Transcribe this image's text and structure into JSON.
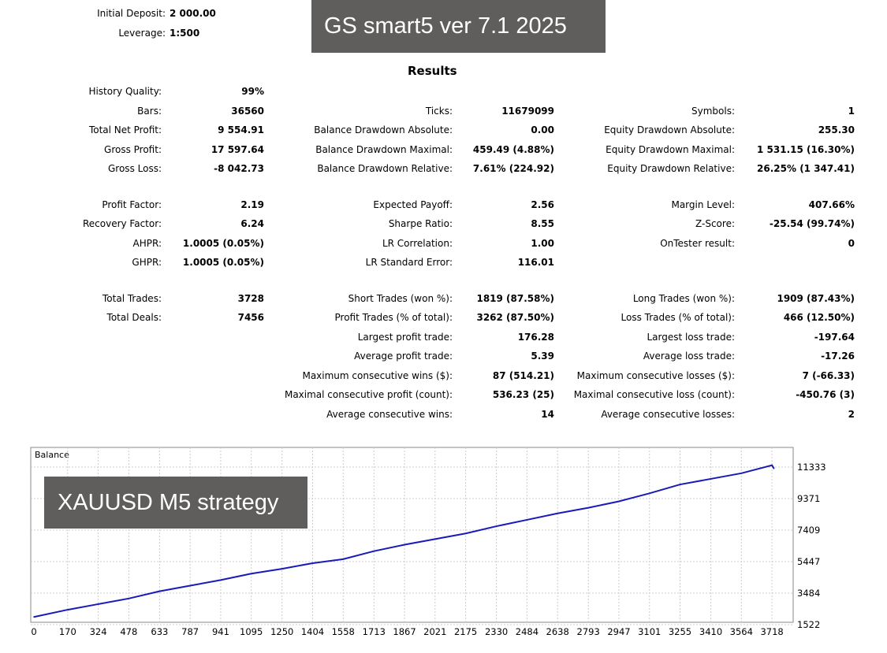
{
  "header": {
    "initial_deposit_label": "Initial Deposit:",
    "initial_deposit": "2 000.00",
    "leverage_label": "Leverage:",
    "leverage": "1:500",
    "banner": "GS smart5 ver 7.1 2025",
    "results_title": "Results"
  },
  "stats": [
    {
      "label": "History Quality:",
      "value": "99%",
      "col": 0,
      "row": 0
    },
    {
      "label": "Bars:",
      "value": "36560",
      "col": 0,
      "row": 1
    },
    {
      "label": "Ticks:",
      "value": "11679099",
      "col": 1,
      "row": 1
    },
    {
      "label": "Symbols:",
      "value": "1",
      "col": 2,
      "row": 1
    },
    {
      "label": "Total Net Profit:",
      "value": "9 554.91",
      "col": 0,
      "row": 2
    },
    {
      "label": "Balance Drawdown Absolute:",
      "value": "0.00",
      "col": 1,
      "row": 2
    },
    {
      "label": "Equity Drawdown Absolute:",
      "value": "255.30",
      "col": 2,
      "row": 2
    },
    {
      "label": "Gross Profit:",
      "value": "17 597.64",
      "col": 0,
      "row": 3
    },
    {
      "label": "Balance Drawdown Maximal:",
      "value": "459.49 (4.88%)",
      "col": 1,
      "row": 3
    },
    {
      "label": "Equity Drawdown Maximal:",
      "value": "1 531.15 (16.30%)",
      "col": 2,
      "row": 3
    },
    {
      "label": "Gross Loss:",
      "value": "-8 042.73",
      "col": 0,
      "row": 4
    },
    {
      "label": "Balance Drawdown Relative:",
      "value": "7.61% (224.92)",
      "col": 1,
      "row": 4
    },
    {
      "label": "Equity Drawdown Relative:",
      "value": "26.25% (1 347.41)",
      "col": 2,
      "row": 4
    },
    {
      "label": "Profit Factor:",
      "value": "2.19",
      "col": 0,
      "row": 5
    },
    {
      "label": "Expected Payoff:",
      "value": "2.56",
      "col": 1,
      "row": 5
    },
    {
      "label": "Margin Level:",
      "value": "407.66%",
      "col": 2,
      "row": 5
    },
    {
      "label": "Recovery Factor:",
      "value": "6.24",
      "col": 0,
      "row": 6
    },
    {
      "label": "Sharpe Ratio:",
      "value": "8.55",
      "col": 1,
      "row": 6
    },
    {
      "label": "Z-Score:",
      "value": "-25.54 (99.74%)",
      "col": 2,
      "row": 6
    },
    {
      "label": "AHPR:",
      "value": "1.0005 (0.05%)",
      "col": 0,
      "row": 7
    },
    {
      "label": "LR Correlation:",
      "value": "1.00",
      "col": 1,
      "row": 7
    },
    {
      "label": "OnTester result:",
      "value": "0",
      "col": 2,
      "row": 7
    },
    {
      "label": "GHPR:",
      "value": "1.0005 (0.05%)",
      "col": 0,
      "row": 8
    },
    {
      "label": "LR Standard Error:",
      "value": "116.01",
      "col": 1,
      "row": 8
    },
    {
      "label": "Total Trades:",
      "value": "3728",
      "col": 0,
      "row": 9
    },
    {
      "label": "Short Trades (won %):",
      "value": "1819 (87.58%)",
      "col": 1,
      "row": 9
    },
    {
      "label": "Long Trades (won %):",
      "value": "1909 (87.43%)",
      "col": 2,
      "row": 9
    },
    {
      "label": "Total Deals:",
      "value": "7456",
      "col": 0,
      "row": 10
    },
    {
      "label": "Profit Trades (% of total):",
      "value": "3262 (87.50%)",
      "col": 1,
      "row": 10
    },
    {
      "label": "Loss Trades (% of total):",
      "value": "466 (12.50%)",
      "col": 2,
      "row": 10
    },
    {
      "label": "Largest profit trade:",
      "value": "176.28",
      "col": 1,
      "row": 11
    },
    {
      "label": "Largest loss trade:",
      "value": "-197.64",
      "col": 2,
      "row": 11
    },
    {
      "label": "Average profit trade:",
      "value": "5.39",
      "col": 1,
      "row": 12
    },
    {
      "label": "Average loss trade:",
      "value": "-17.26",
      "col": 2,
      "row": 12
    },
    {
      "label": "Maximum consecutive wins ($):",
      "value": "87 (514.21)",
      "col": 1,
      "row": 13
    },
    {
      "label": "Maximum consecutive losses ($):",
      "value": "7 (-66.33)",
      "col": 2,
      "row": 13
    },
    {
      "label": "Maximal consecutive profit (count):",
      "value": "536.23 (25)",
      "col": 1,
      "row": 14
    },
    {
      "label": "Maximal consecutive loss (count):",
      "value": "-450.76 (3)",
      "col": 2,
      "row": 14
    },
    {
      "label": "Average consecutive wins:",
      "value": "14",
      "col": 1,
      "row": 15
    },
    {
      "label": "Average consecutive losses:",
      "value": "2",
      "col": 2,
      "row": 15
    }
  ],
  "chart_data": {
    "type": "line",
    "title": "Balance",
    "overlay_label": "XAUUSD M5 strategy",
    "x_ticks": [
      "0",
      "170",
      "324",
      "478",
      "633",
      "787",
      "941",
      "1095",
      "1250",
      "1404",
      "1558",
      "1713",
      "1867",
      "2021",
      "2175",
      "2330",
      "2484",
      "2638",
      "2793",
      "2947",
      "3101",
      "3255",
      "3410",
      "3564",
      "3718"
    ],
    "y_ticks": [
      "1522",
      "3484",
      "5447",
      "7409",
      "9371",
      "11333"
    ],
    "xlim": [
      0,
      3813
    ],
    "ylim": [
      1522,
      11833
    ],
    "grid": true,
    "line_color": "#1a1ab8",
    "series": [
      {
        "name": "Balance",
        "x": [
          0,
          170,
          324,
          478,
          633,
          787,
          941,
          1095,
          1250,
          1404,
          1558,
          1713,
          1867,
          2021,
          2175,
          2330,
          2484,
          2638,
          2793,
          2947,
          3101,
          3255,
          3410,
          3564,
          3718,
          3728
        ],
        "y": [
          2000,
          2450,
          2800,
          3150,
          3600,
          3950,
          4300,
          4700,
          5000,
          5350,
          5600,
          6100,
          6500,
          6850,
          7200,
          7650,
          8050,
          8450,
          8800,
          9200,
          9700,
          10250,
          10600,
          10950,
          11450,
          11250
        ]
      }
    ]
  }
}
